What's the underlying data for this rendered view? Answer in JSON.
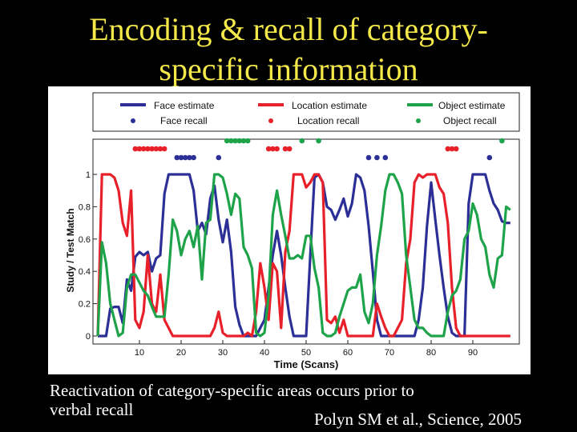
{
  "slide": {
    "title_line1": "Encoding & recall of category-",
    "title_line2": "specific information",
    "caption_line1": "Reactivation of category-specific areas occurs prior to",
    "caption_line2": "verbal recall",
    "citation": "Polyn SM et al., Science, 2005"
  },
  "colors": {
    "background": "#000000",
    "title": "#f5e94a",
    "face": "#2b2f96",
    "location": "#e8202a",
    "object": "#1fa34a"
  },
  "chart_data": {
    "type": "line",
    "xlabel": "Time (Scans)",
    "ylabel": "Study / Test Match",
    "xlim": [
      0,
      100
    ],
    "ylim": [
      0,
      1
    ],
    "xticks": [
      10,
      20,
      30,
      40,
      50,
      60,
      70,
      80,
      90
    ],
    "yticks": [
      0,
      0.2,
      0.4,
      0.6,
      0.8,
      1
    ],
    "legend": {
      "placement": "top",
      "entries": [
        "Face  estimate",
        "Location estimate",
        "Object estimate",
        "Face  recall",
        "Location  recall",
        "Object  recall"
      ]
    },
    "x": [
      0,
      1,
      2,
      3,
      4,
      5,
      6,
      7,
      8,
      9,
      10,
      11,
      12,
      13,
      14,
      15,
      16,
      17,
      18,
      19,
      20,
      21,
      22,
      23,
      24,
      25,
      26,
      27,
      28,
      29,
      30,
      31,
      32,
      33,
      34,
      35,
      36,
      37,
      38,
      39,
      40,
      41,
      42,
      43,
      44,
      45,
      46,
      47,
      48,
      49,
      50,
      51,
      52,
      53,
      54,
      55,
      56,
      57,
      58,
      59,
      60,
      61,
      62,
      63,
      64,
      65,
      66,
      67,
      68,
      69,
      70,
      71,
      72,
      73,
      74,
      75,
      76,
      77,
      78,
      79,
      80,
      81,
      82,
      83,
      84,
      85,
      86,
      87,
      88,
      89,
      90,
      91,
      92,
      93,
      94,
      95,
      96,
      97,
      98,
      99
    ],
    "series": [
      {
        "name": "Face  estimate",
        "values": [
          0,
          0,
          0,
          0.17,
          0.18,
          0.18,
          0.08,
          0.35,
          0.28,
          0.49,
          0.52,
          0.5,
          0.52,
          0.4,
          0.48,
          0.5,
          0.88,
          1,
          1,
          1,
          1,
          1,
          1,
          0.9,
          0.65,
          0.7,
          0.63,
          0.85,
          0.93,
          0.72,
          0.58,
          0.72,
          0.52,
          0.18,
          0.07,
          0,
          0,
          0,
          0,
          0.05,
          0.1,
          0.3,
          0.5,
          0.65,
          0.5,
          0.3,
          0.12,
          0,
          0,
          0,
          0,
          0.5,
          0.98,
          1,
          0.95,
          0.8,
          0.78,
          0.72,
          0.78,
          0.85,
          0.74,
          0.82,
          1,
          0.98,
          0.9,
          0.68,
          0.4,
          0.1,
          0,
          0,
          0,
          0,
          0,
          0,
          0,
          0,
          0,
          0.1,
          0.3,
          0.68,
          0.95,
          0.72,
          0.5,
          0.3,
          0.12,
          0.02,
          0,
          0,
          0,
          0.82,
          1,
          1,
          1,
          1,
          0.9,
          0.82,
          0.78,
          0.71,
          0.7,
          0.7
        ]
      },
      {
        "name": "Location estimate",
        "values": [
          0,
          1,
          1,
          1,
          0.98,
          0.9,
          0.7,
          0.62,
          0.9,
          0.1,
          0.05,
          0.15,
          0.5,
          0.2,
          0.15,
          0.38,
          0.1,
          0.05,
          0,
          0,
          0,
          0,
          0,
          0,
          0,
          0,
          0,
          0,
          0.05,
          0.15,
          0.02,
          0,
          0,
          0,
          0,
          0,
          0.02,
          0,
          0.15,
          0.45,
          0.3,
          0.1,
          0.45,
          0.4,
          0.05,
          0.52,
          0.65,
          1,
          1,
          1,
          0.92,
          0.95,
          1,
          1,
          0.95,
          0.1,
          0.08,
          0.12,
          0.02,
          0.1,
          0,
          0,
          0,
          0,
          0,
          0,
          0,
          0.2,
          0.12,
          0.05,
          0,
          0,
          0.05,
          0.1,
          0.45,
          0.6,
          0.95,
          1,
          0.98,
          1,
          1,
          1,
          0.92,
          0.88,
          0.7,
          0.3,
          0.05,
          0,
          0,
          0,
          0,
          0,
          0,
          0,
          0,
          0,
          0,
          0,
          0,
          0
        ]
      },
      {
        "name": "Object estimate",
        "values": [
          0,
          0.58,
          0.45,
          0.2,
          0.1,
          0,
          0.02,
          0.3,
          0.38,
          0.38,
          0.33,
          0.28,
          0.25,
          0.18,
          0.12,
          0.12,
          0.12,
          0.38,
          0.72,
          0.65,
          0.5,
          0.6,
          0.65,
          0.55,
          0.68,
          0.35,
          0.7,
          0.72,
          1,
          1,
          0.98,
          0.88,
          0.75,
          0.88,
          0.85,
          0.55,
          0.5,
          0.42,
          0.02,
          0,
          0.02,
          0.25,
          0.75,
          0.9,
          0.75,
          0.62,
          0.48,
          0.48,
          0.5,
          0.48,
          0.62,
          0.62,
          0.42,
          0.3,
          0.02,
          0,
          0,
          0.02,
          0.12,
          0.2,
          0.28,
          0.3,
          0.3,
          0.38,
          0.15,
          0.08,
          0.2,
          0.5,
          0.68,
          0.9,
          1,
          1,
          0.95,
          0.88,
          0.5,
          0.3,
          0.1,
          0.05,
          0.05,
          0.02,
          0,
          0,
          0,
          0,
          0.15,
          0.25,
          0.28,
          0.35,
          0.6,
          0.65,
          0.82,
          0.75,
          0.6,
          0.55,
          0.38,
          0.3,
          0.48,
          0.5,
          0.8,
          0.78
        ]
      }
    ],
    "recall": {
      "face": [
        19,
        20,
        21,
        22,
        23,
        29,
        65,
        67,
        69,
        94
      ],
      "location": [
        9,
        10,
        11,
        12,
        13,
        14,
        15,
        16,
        41,
        42,
        43,
        45,
        46,
        84,
        85,
        86
      ],
      "object": [
        31,
        32,
        33,
        34,
        35,
        36,
        49,
        53,
        97
      ]
    }
  }
}
